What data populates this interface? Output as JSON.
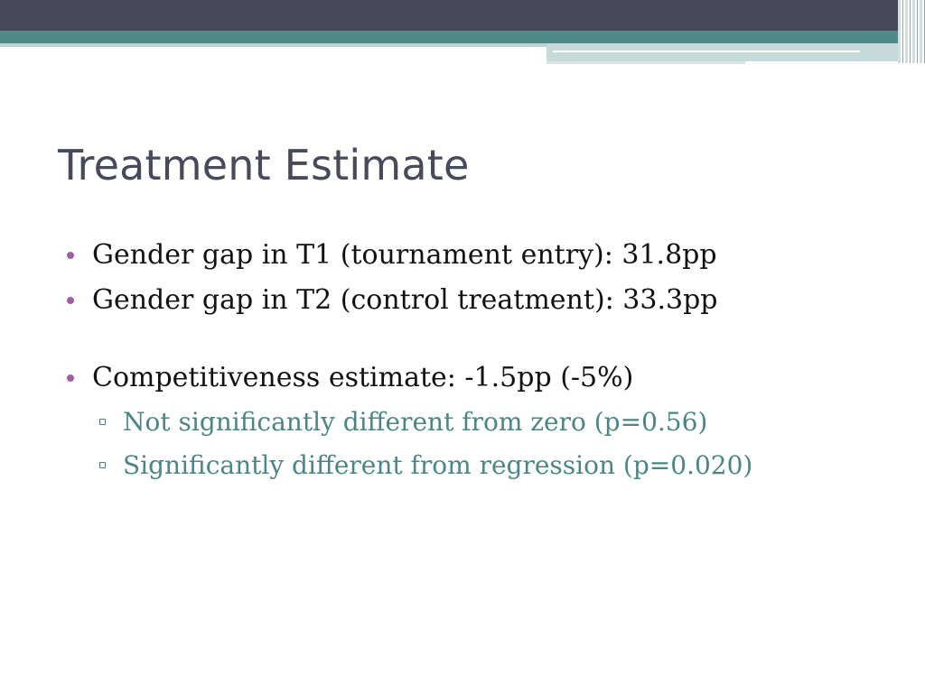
{
  "slide": {
    "title": "Treatment Estimate",
    "bullets": [
      {
        "text": "Gender gap in T1 (tournament entry): 31.8pp"
      },
      {
        "text": "Gender gap in T2 (control treatment): 33.3pp"
      },
      {
        "text": "Competitiveness estimate: -1.5pp (-5%)",
        "sub": [
          "Not significantly different from zero (p=0.56)",
          "Significantly different from regression (p=0.020)"
        ]
      }
    ]
  },
  "colors": {
    "title": "#474a5b",
    "bullet_marker": "#a05ca6",
    "sub_text": "#4a8686",
    "header_dark": "#46475a",
    "header_teal": "#4f8a8a"
  }
}
